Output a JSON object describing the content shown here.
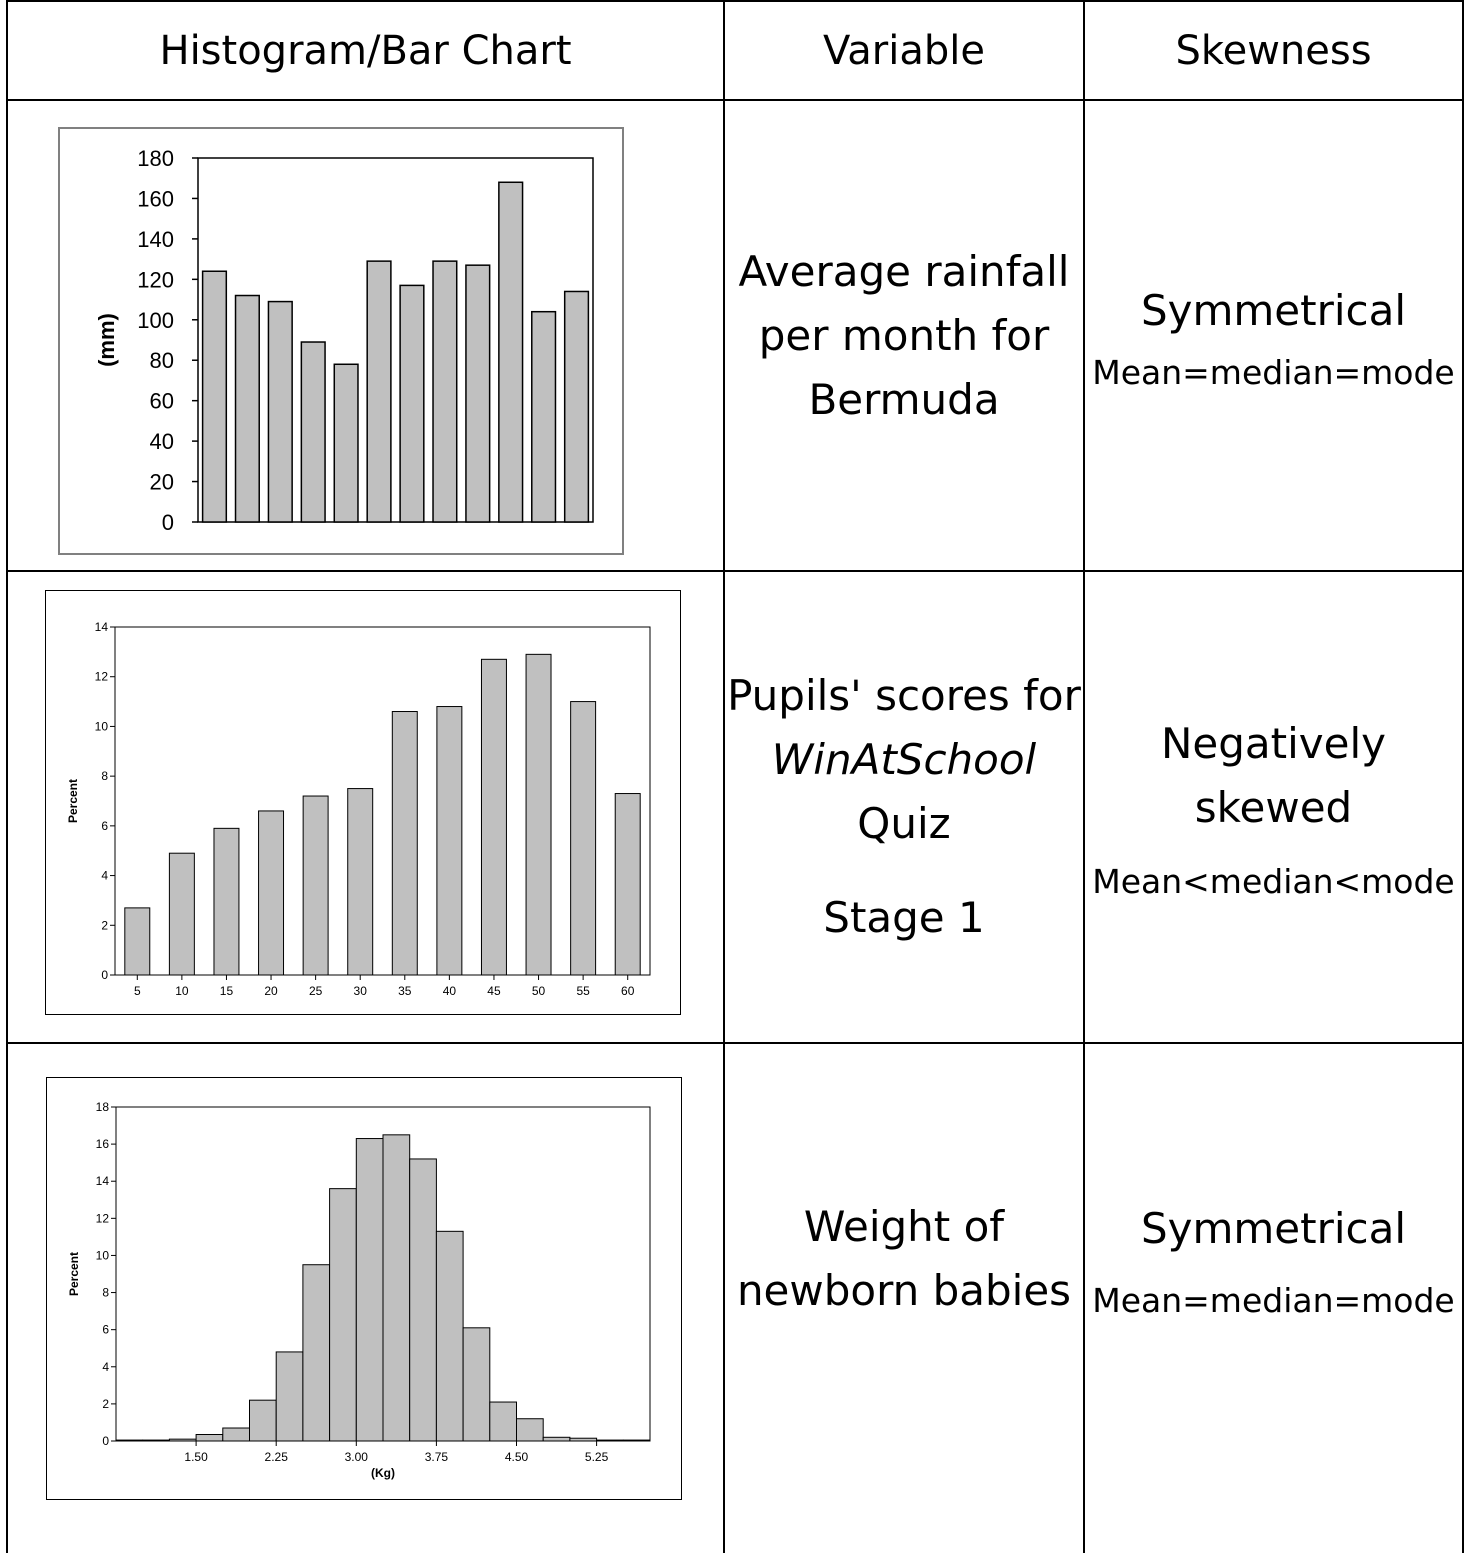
{
  "headers": {
    "chart": "Histogram/Bar Chart",
    "variable": "Variable",
    "skewness": "Skewness"
  },
  "rows": [
    {
      "variable_lines": [
        "Average rainfall",
        "per month for",
        "Bermuda"
      ],
      "skew_label": "Symmetrical",
      "skew_relation": "Mean=median=mode"
    },
    {
      "variable_lines": [
        "Pupils' scores for",
        "WinAtSchool",
        "Quiz",
        "Stage 1"
      ],
      "skew_label_lines": [
        "Negatively",
        "skewed"
      ],
      "skew_relation": "Mean<median<mode"
    },
    {
      "variable_lines": [
        "Weight of",
        "newborn babies"
      ],
      "skew_label": "Symmetrical",
      "skew_relation": "Mean=median=mode"
    }
  ],
  "chart_data": [
    {
      "type": "bar",
      "title": "",
      "xlabel": "",
      "ylabel": "(mm)",
      "ylim": [
        0,
        180
      ],
      "yticks": [
        0,
        20,
        40,
        60,
        80,
        100,
        120,
        140,
        160,
        180
      ],
      "values": [
        124,
        112,
        109,
        89,
        78,
        129,
        117,
        129,
        127,
        168,
        104,
        114
      ],
      "bar_color": "#c0c0c0",
      "grid": false
    },
    {
      "type": "bar",
      "title": "",
      "xlabel": "",
      "ylabel": "Percent",
      "ylim": [
        0,
        14
      ],
      "yticks": [
        0,
        2,
        4,
        6,
        8,
        10,
        12,
        14
      ],
      "categories": [
        "5",
        "10",
        "15",
        "20",
        "25",
        "30",
        "35",
        "40",
        "45",
        "50",
        "55",
        "60"
      ],
      "values": [
        2.7,
        4.9,
        5.9,
        6.6,
        7.2,
        7.5,
        10.6,
        10.8,
        12.7,
        12.9,
        11.0,
        7.3
      ],
      "bar_color": "#c0c0c0",
      "grid": false
    },
    {
      "type": "bar",
      "title": "",
      "xlabel": "(Kg)",
      "ylabel": "Percent",
      "ylim": [
        0,
        18
      ],
      "yticks": [
        0,
        2,
        4,
        6,
        8,
        10,
        12,
        14,
        16,
        18
      ],
      "xticks": [
        "1.50",
        "2.25",
        "3.00",
        "3.75",
        "4.50",
        "5.25"
      ],
      "xtick_values": [
        1.5,
        2.25,
        3.0,
        3.75,
        4.5,
        5.25
      ],
      "bin_start": 0.75,
      "bin_width": 0.25,
      "values": [
        0.05,
        0.05,
        0.1,
        0.35,
        0.7,
        2.2,
        4.8,
        9.5,
        13.6,
        16.3,
        16.5,
        15.2,
        11.3,
        6.1,
        2.1,
        1.2,
        0.2,
        0.15,
        0.05,
        0.05
      ],
      "bar_color": "#c0c0c0",
      "grid": false
    }
  ]
}
